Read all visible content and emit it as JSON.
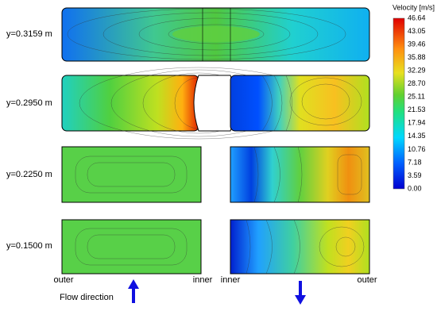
{
  "rows": [
    {
      "label": "y=0.3159 m"
    },
    {
      "label": "y=0.2950 m"
    },
    {
      "label": "y=0.2250 m"
    },
    {
      "label": "y=0.1500 m"
    }
  ],
  "colorbar": {
    "title": "Velocity [m/s]",
    "ticks": [
      "46.64",
      "43.05",
      "39.46",
      "35.88",
      "32.29",
      "28.70",
      "25.11",
      "21.53",
      "17.94",
      "14.35",
      "10.76",
      "7.18",
      "3.59",
      "0.00"
    ]
  },
  "axis_labels": {
    "left": "outer",
    "inner_left": "inner",
    "inner_right": "inner",
    "right": "outer"
  },
  "flow_label": "Flow direction"
}
